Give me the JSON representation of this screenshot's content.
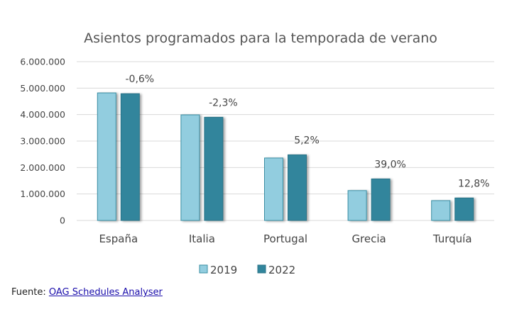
{
  "chart_data": {
    "type": "bar",
    "title": "Asientos programados para la temporada de verano",
    "xlabel": "",
    "ylabel": "",
    "categories": [
      "España",
      "Italia",
      "Portugal",
      "Grecia",
      "Turquía"
    ],
    "series": [
      {
        "name": "2019",
        "color": "#92cddf",
        "stroke": "#3a8ea3",
        "values": [
          4820000,
          3990000,
          2360000,
          1130000,
          750000
        ]
      },
      {
        "name": "2022",
        "color": "#31859c",
        "stroke": "#2a7387",
        "values": [
          4790000,
          3900000,
          2480000,
          1570000,
          850000
        ]
      }
    ],
    "data_labels": [
      "-0,6%",
      "-2,3%",
      "5,2%",
      "39,0%",
      "12,8%"
    ],
    "ylim": [
      0,
      6000000
    ],
    "yticks": [
      0,
      1000000,
      2000000,
      3000000,
      4000000,
      5000000,
      6000000
    ],
    "ytick_labels": [
      "0",
      "1.000.000",
      "2.000.000",
      "3.000.000",
      "4.000.000",
      "5.000.000",
      "6.000.000"
    ],
    "grid": true,
    "legend_position": "bottom"
  },
  "source": {
    "label": "Fuente:",
    "link_text": "OAG Schedules Analyser"
  }
}
